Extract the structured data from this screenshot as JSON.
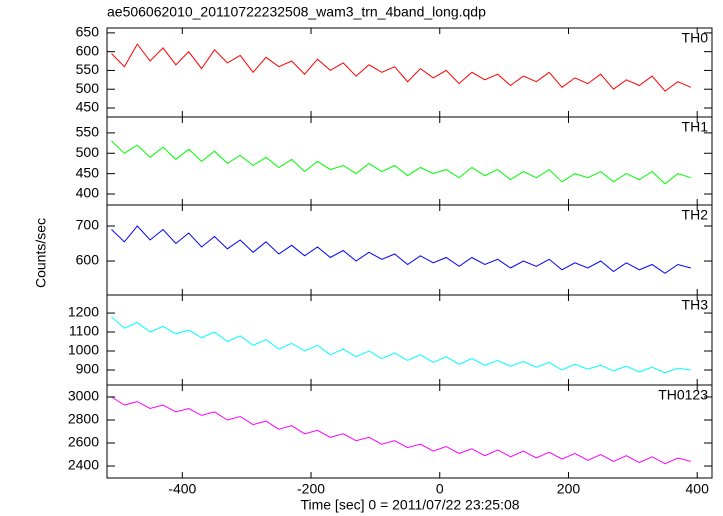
{
  "title": "ae506062010_20110722232508_wam3_trn_4band_long.qdp",
  "ylabel": "Counts/sec",
  "xlabel": "Time [sec] 0 = 2011/07/22 23:25:08",
  "chart_data": [
    {
      "type": "line",
      "label": "TH0",
      "color": "#ff0000",
      "xlim": [
        -517,
        423
      ],
      "ylim": [
        426,
        663
      ],
      "yticks": [
        450,
        500,
        550,
        600,
        650
      ],
      "x": [
        -510,
        -490,
        -470,
        -450,
        -430,
        -410,
        -390,
        -370,
        -350,
        -330,
        -310,
        -290,
        -270,
        -250,
        -230,
        -210,
        -190,
        -170,
        -150,
        -130,
        -110,
        -90,
        -70,
        -50,
        -30,
        -10,
        10,
        30,
        50,
        70,
        90,
        110,
        130,
        150,
        170,
        190,
        210,
        230,
        250,
        270,
        290,
        310,
        330,
        350,
        370,
        390
      ],
      "values": [
        595,
        560,
        620,
        575,
        610,
        565,
        600,
        555,
        605,
        570,
        590,
        545,
        585,
        560,
        575,
        540,
        580,
        550,
        570,
        535,
        565,
        545,
        560,
        520,
        555,
        530,
        550,
        515,
        545,
        525,
        540,
        510,
        535,
        520,
        545,
        505,
        530,
        515,
        540,
        500,
        525,
        510,
        535,
        495,
        520,
        505
      ]
    },
    {
      "type": "line",
      "label": "TH1",
      "color": "#00ff00",
      "xlim": [
        -517,
        423
      ],
      "ylim": [
        373,
        589
      ],
      "yticks": [
        400,
        450,
        500,
        550
      ],
      "x": [
        -510,
        -490,
        -470,
        -450,
        -430,
        -410,
        -390,
        -370,
        -350,
        -330,
        -310,
        -290,
        -270,
        -250,
        -230,
        -210,
        -190,
        -170,
        -150,
        -130,
        -110,
        -90,
        -70,
        -50,
        -30,
        -10,
        10,
        30,
        50,
        70,
        90,
        110,
        130,
        150,
        170,
        190,
        210,
        230,
        250,
        270,
        290,
        310,
        330,
        350,
        370,
        390
      ],
      "values": [
        530,
        500,
        520,
        490,
        515,
        485,
        510,
        480,
        505,
        475,
        495,
        470,
        490,
        465,
        485,
        455,
        480,
        460,
        470,
        450,
        475,
        455,
        470,
        445,
        465,
        450,
        460,
        440,
        465,
        445,
        460,
        435,
        455,
        440,
        460,
        430,
        450,
        440,
        455,
        430,
        450,
        435,
        455,
        425,
        450,
        440
      ]
    },
    {
      "type": "line",
      "label": "TH2",
      "color": "#0000ff",
      "xlim": [
        -517,
        423
      ],
      "ylim": [
        503,
        760
      ],
      "yticks": [
        600,
        700
      ],
      "x": [
        -510,
        -490,
        -470,
        -450,
        -430,
        -410,
        -390,
        -370,
        -350,
        -330,
        -310,
        -290,
        -270,
        -250,
        -230,
        -210,
        -190,
        -170,
        -150,
        -130,
        -110,
        -90,
        -70,
        -50,
        -30,
        -10,
        10,
        30,
        50,
        70,
        90,
        110,
        130,
        150,
        170,
        190,
        210,
        230,
        250,
        270,
        290,
        310,
        330,
        350,
        370,
        390
      ],
      "values": [
        690,
        655,
        700,
        660,
        690,
        650,
        680,
        640,
        670,
        635,
        660,
        625,
        655,
        620,
        645,
        615,
        640,
        610,
        630,
        600,
        625,
        605,
        620,
        590,
        615,
        595,
        610,
        585,
        610,
        590,
        605,
        580,
        600,
        585,
        605,
        575,
        595,
        580,
        600,
        570,
        595,
        575,
        590,
        565,
        590,
        580
      ]
    },
    {
      "type": "line",
      "label": "TH3",
      "color": "#00ffff",
      "xlim": [
        -517,
        423
      ],
      "ylim": [
        821,
        1295
      ],
      "yticks": [
        900,
        1000,
        1100,
        1200
      ],
      "x": [
        -510,
        -490,
        -470,
        -450,
        -430,
        -410,
        -390,
        -370,
        -350,
        -330,
        -310,
        -290,
        -270,
        -250,
        -230,
        -210,
        -190,
        -170,
        -150,
        -130,
        -110,
        -90,
        -70,
        -50,
        -30,
        -10,
        10,
        30,
        50,
        70,
        90,
        110,
        130,
        150,
        170,
        190,
        210,
        230,
        250,
        270,
        290,
        310,
        330,
        350,
        370,
        390
      ],
      "values": [
        1180,
        1120,
        1150,
        1100,
        1130,
        1090,
        1110,
        1070,
        1100,
        1050,
        1080,
        1030,
        1060,
        1010,
        1040,
        1000,
        1030,
        980,
        1010,
        970,
        1000,
        960,
        990,
        950,
        980,
        940,
        970,
        930,
        960,
        925,
        950,
        920,
        945,
        915,
        940,
        900,
        930,
        905,
        925,
        895,
        920,
        890,
        915,
        885,
        910,
        900
      ]
    },
    {
      "type": "line",
      "label": "TH0123",
      "color": "#ff00ff",
      "xlim": [
        -517,
        423
      ],
      "ylim": [
        2296,
        3104
      ],
      "yticks": [
        2400,
        2600,
        2800,
        3000
      ],
      "xticks": [
        -400,
        -200,
        0,
        200,
        400
      ],
      "x": [
        -510,
        -490,
        -470,
        -450,
        -430,
        -410,
        -390,
        -370,
        -350,
        -330,
        -310,
        -290,
        -270,
        -250,
        -230,
        -210,
        -190,
        -170,
        -150,
        -130,
        -110,
        -90,
        -70,
        -50,
        -30,
        -10,
        10,
        30,
        50,
        70,
        90,
        110,
        130,
        150,
        170,
        190,
        210,
        230,
        250,
        270,
        290,
        310,
        330,
        350,
        370,
        390
      ],
      "values": [
        3000,
        2930,
        2960,
        2900,
        2930,
        2870,
        2900,
        2840,
        2870,
        2800,
        2830,
        2760,
        2790,
        2720,
        2750,
        2680,
        2710,
        2650,
        2680,
        2620,
        2650,
        2590,
        2620,
        2560,
        2590,
        2530,
        2570,
        2510,
        2550,
        2490,
        2540,
        2480,
        2530,
        2470,
        2520,
        2460,
        2510,
        2450,
        2500,
        2440,
        2490,
        2430,
        2480,
        2420,
        2470,
        2440
      ]
    }
  ]
}
